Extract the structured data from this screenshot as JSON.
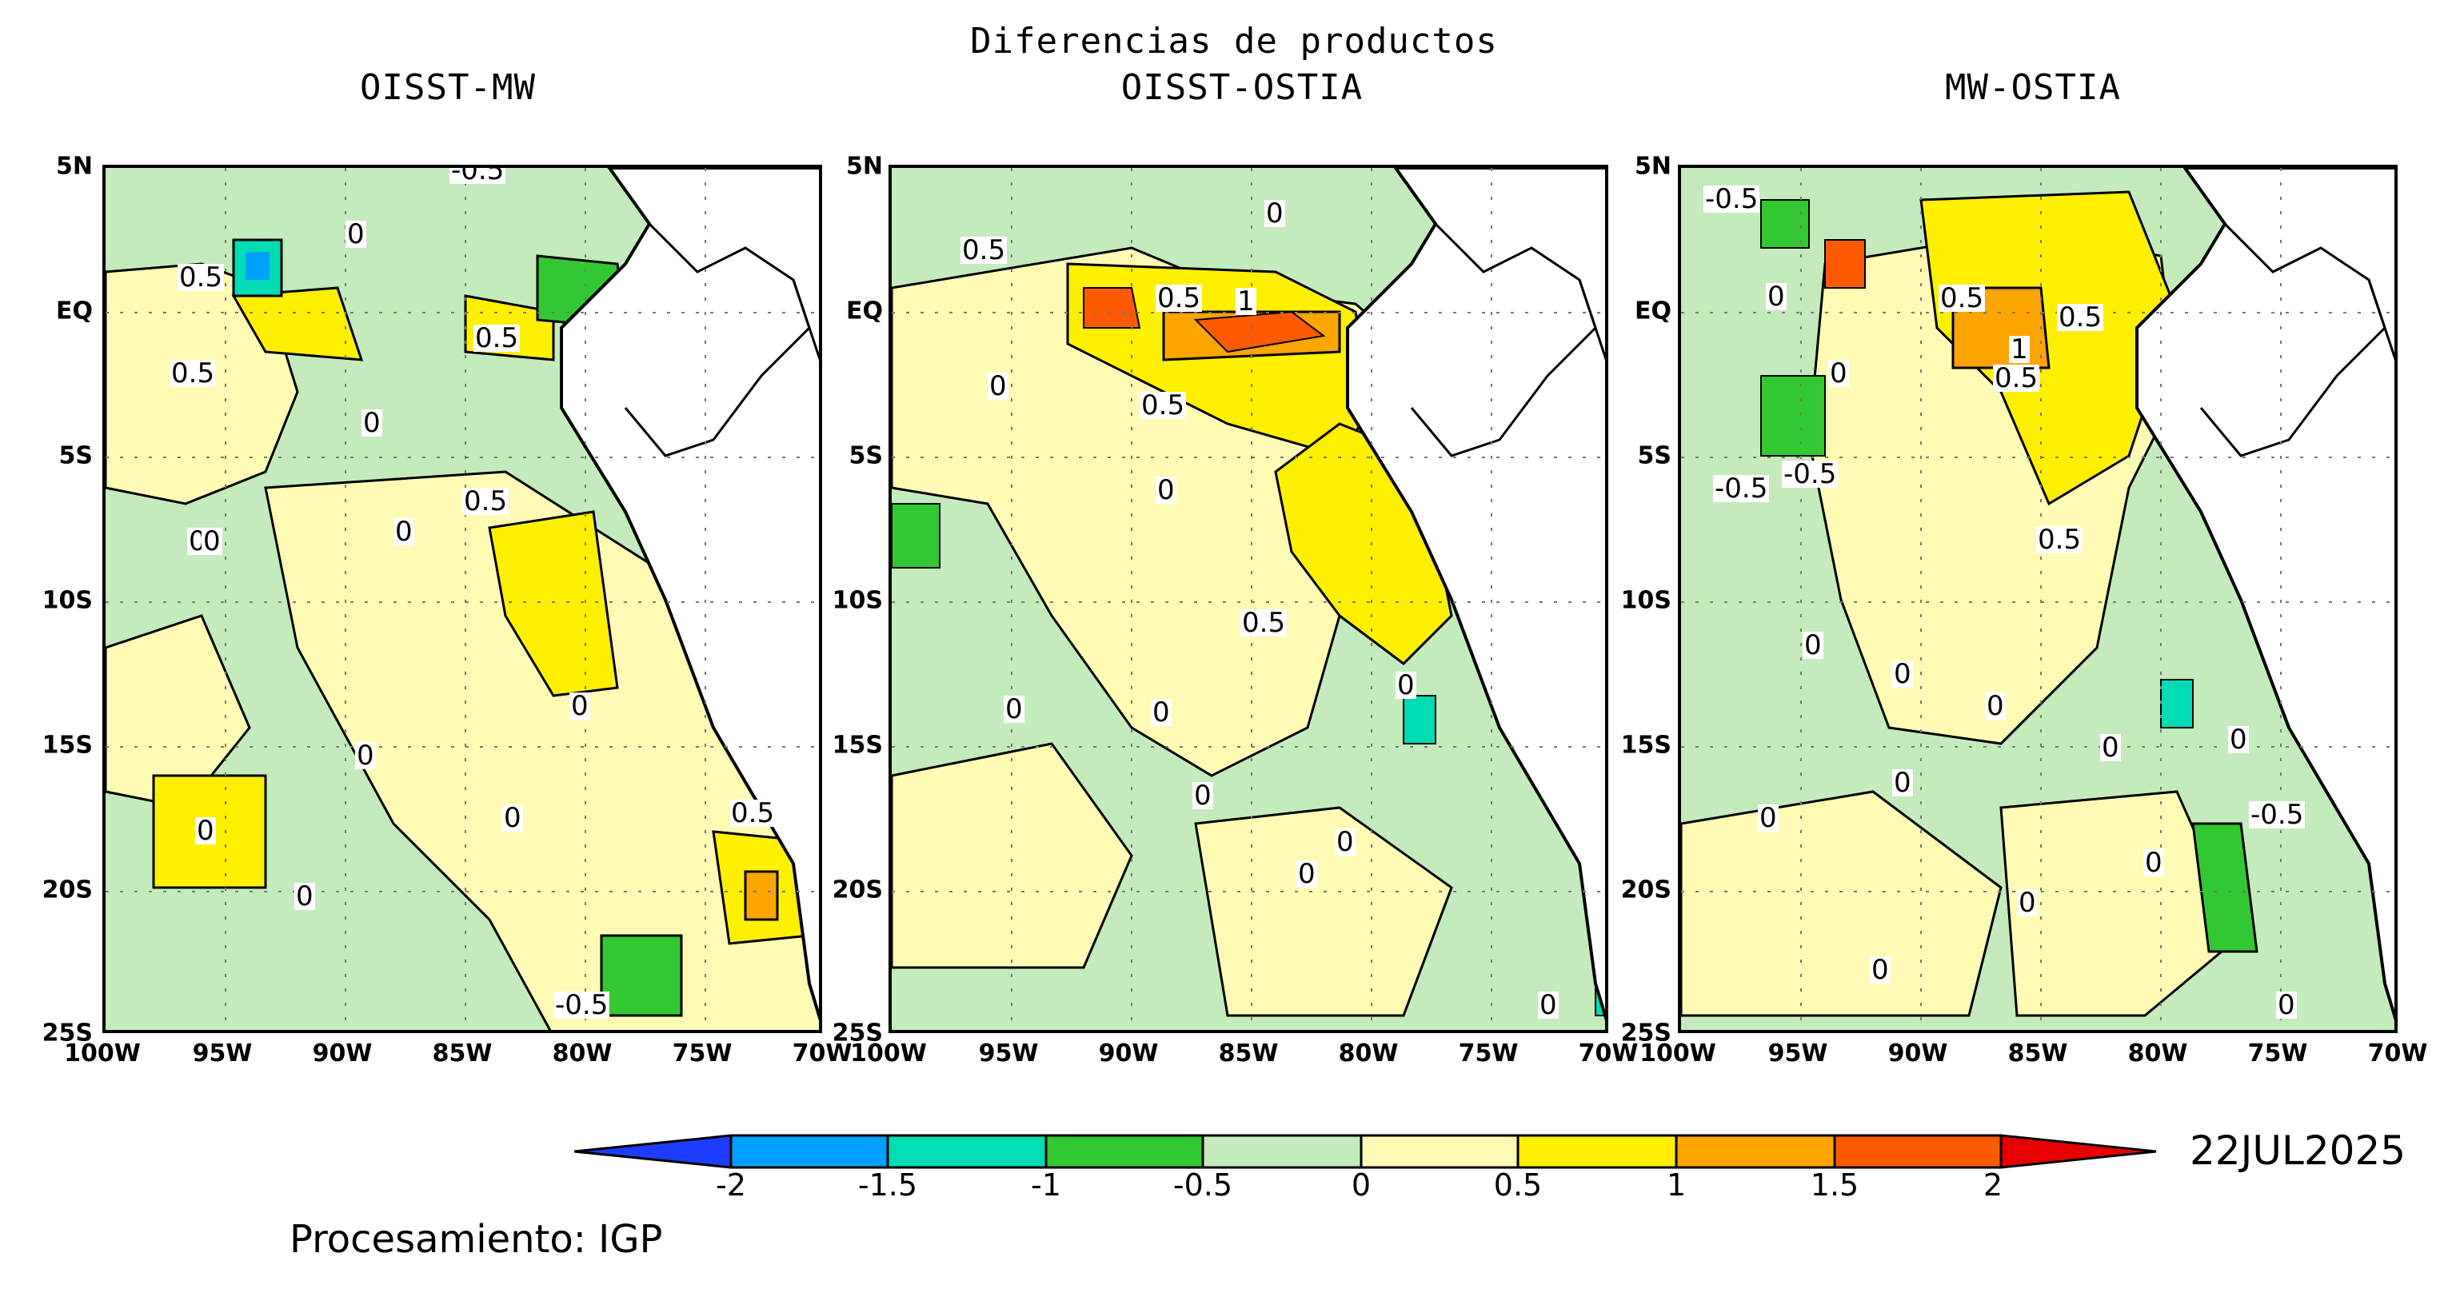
{
  "figure": {
    "main_title": "Diferencias de productos",
    "date": "22JUL2025",
    "credit": "Procesamiento: IGP"
  },
  "panels": [
    {
      "title": "OISST-MW",
      "contour_labels": [
        "-0.5",
        "0.5",
        "0.5",
        "0.5",
        "0",
        "0",
        "0.5",
        "0",
        "0",
        "0",
        "0",
        "0",
        "0",
        "0",
        "0.5",
        "0",
        "-0.5"
      ]
    },
    {
      "title": "OISST-OSTIA",
      "contour_labels": [
        "0",
        "0.5",
        "0.5",
        "1",
        "0",
        "0.5",
        "0",
        "0.5",
        "0",
        "0",
        "0",
        "0",
        "0",
        "0",
        "0"
      ]
    },
    {
      "title": "MW-OSTIA",
      "contour_labels": [
        "-0.5",
        "0",
        "0.5",
        "0.5",
        "1",
        "0",
        "0.5",
        "-0.5",
        "-0.5",
        "0.5",
        "0",
        "0",
        "0",
        "0",
        "0",
        "0",
        "-0.5",
        "0",
        "0",
        "0",
        "0",
        "0"
      ]
    }
  ],
  "axes": {
    "lat_ticks": [
      "5N",
      "EQ",
      "5S",
      "10S",
      "15S",
      "20S",
      "25S"
    ],
    "lon_ticks": [
      "100W",
      "95W",
      "90W",
      "85W",
      "80W",
      "75W",
      "70W"
    ]
  },
  "colorbar": {
    "labels": [
      "-2",
      "-1.5",
      "-1",
      "-0.5",
      "0",
      "0.5",
      "1",
      "1.5",
      "2"
    ],
    "colors": [
      "#1e3cff",
      "#00a0ff",
      "#00dcb4",
      "#32c832",
      "#c3ebbb",
      "#fffab4",
      "#fff000",
      "#ffa500",
      "#ff5a00",
      "#e60000"
    ]
  }
}
